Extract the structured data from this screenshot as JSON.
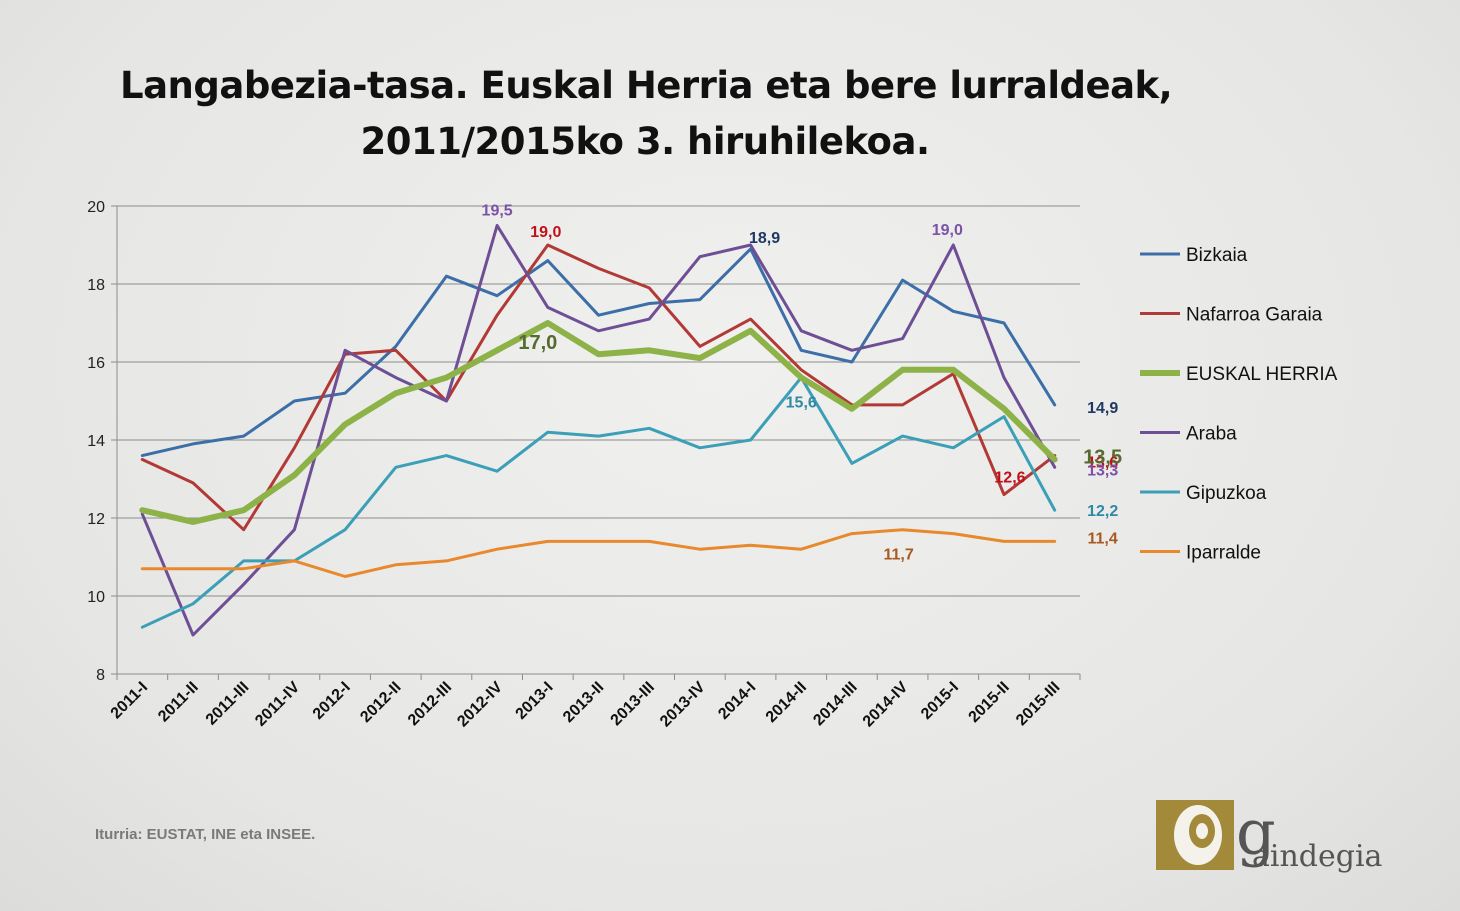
{
  "chart_data": {
    "type": "line",
    "title_lines": [
      "Langabezia-tasa. Euskal Herria eta bere lurraldeak,",
      "2011/2015ko 3. hiruhilekoa."
    ],
    "categories": [
      "2011-I",
      "2011-II",
      "2011-III",
      "2011-IV",
      "2012-I",
      "2012-II",
      "2012-III",
      "2012-IV",
      "2013-I",
      "2013-II",
      "2013-III",
      "2013-IV",
      "2014-I",
      "2014-II",
      "2014-III",
      "2014-IV",
      "2015-I",
      "2015-II",
      "2015-III"
    ],
    "ylim": [
      8,
      20
    ],
    "yticks": [
      "8",
      "10",
      "12",
      "14",
      "16",
      "18",
      "20"
    ],
    "grid": true,
    "legend_position": "right",
    "series": [
      {
        "name": "Bizkaia",
        "color": "#3c6ea8",
        "width": 3,
        "values": [
          13.6,
          13.9,
          14.1,
          15.0,
          15.2,
          16.4,
          18.2,
          17.7,
          18.6,
          17.2,
          17.5,
          17.6,
          18.9,
          16.3,
          16.0,
          18.1,
          17.3,
          17.0,
          14.9
        ]
      },
      {
        "name": "Nafarroa Garaia",
        "color": "#b23a36",
        "width": 3,
        "values": [
          13.5,
          12.9,
          11.7,
          13.8,
          16.2,
          16.3,
          15.0,
          17.2,
          19.0,
          18.4,
          17.9,
          16.4,
          17.1,
          15.8,
          14.9,
          14.9,
          15.7,
          12.6,
          13.6
        ]
      },
      {
        "name": "EUSKAL HERRIA",
        "color": "#8db248",
        "width": 6,
        "values": [
          12.2,
          11.9,
          12.2,
          13.1,
          14.4,
          15.2,
          15.6,
          16.3,
          17.0,
          16.2,
          16.3,
          16.1,
          16.8,
          15.6,
          14.8,
          15.8,
          15.8,
          14.8,
          13.5
        ]
      },
      {
        "name": "Araba",
        "color": "#6e4f95",
        "width": 3,
        "values": [
          12.1,
          9.0,
          10.3,
          11.7,
          16.3,
          15.6,
          15.0,
          19.5,
          17.4,
          16.8,
          17.1,
          18.7,
          19.0,
          16.8,
          16.3,
          16.6,
          19.0,
          15.6,
          13.3
        ]
      },
      {
        "name": "Gipuzkoa",
        "color": "#3a9fb7",
        "width": 3,
        "values": [
          9.2,
          9.8,
          10.9,
          10.9,
          11.7,
          13.3,
          13.6,
          13.2,
          14.2,
          14.1,
          14.3,
          13.8,
          14.0,
          15.6,
          13.4,
          14.1,
          13.8,
          14.6,
          12.2
        ]
      },
      {
        "name": "Iparralde",
        "color": "#e7892c",
        "width": 3,
        "values": [
          10.7,
          10.7,
          10.7,
          10.9,
          10.5,
          10.8,
          10.9,
          11.2,
          11.4,
          11.4,
          11.4,
          11.2,
          11.3,
          11.2,
          11.6,
          11.7,
          11.6,
          11.4,
          11.4
        ]
      }
    ],
    "annotations": [
      {
        "text": "19,5",
        "series": "Araba",
        "category": "2012-IV",
        "color": "#7b52a8"
      },
      {
        "text": "19,0",
        "series": "Nafarroa Garaia",
        "category": "2013-I",
        "color": "#c0111a"
      },
      {
        "text": "17,0",
        "series": "EUSKAL HERRIA",
        "category": "2013-I",
        "color": "#556b2f"
      },
      {
        "text": "18,9",
        "series": "Bizkaia",
        "category": "2014-I",
        "color": "#1f3864"
      },
      {
        "text": "15,6",
        "series": "Gipuzkoa",
        "category": "2014-II",
        "color": "#2e8aa3"
      },
      {
        "text": "11,7",
        "series": "Iparralde",
        "category": "2014-IV",
        "color": "#a9581f"
      },
      {
        "text": "19,0",
        "series": "Araba",
        "category": "2015-I",
        "color": "#7b52a8"
      },
      {
        "text": "12,6",
        "series": "Nafarroa Garaia",
        "category": "2015-II",
        "color": "#c0111a"
      },
      {
        "text": "14,9",
        "series": "Bizkaia",
        "category": "2015-III",
        "color": "#1f3864"
      },
      {
        "text": "13,6",
        "series": "Nafarroa Garaia",
        "category": "2015-III",
        "color": "#c0111a"
      },
      {
        "text": "13,5",
        "series": "EUSKAL HERRIA",
        "category": "2015-III",
        "color": "#556b2f"
      },
      {
        "text": "13,3",
        "series": "Araba",
        "category": "2015-III",
        "color": "#7b52a8"
      },
      {
        "text": "12,2",
        "series": "Gipuzkoa",
        "category": "2015-III",
        "color": "#2e8aa3"
      },
      {
        "text": "11,4",
        "series": "Iparralde",
        "category": "2015-III",
        "color": "#a9581f"
      }
    ]
  },
  "source_note": "Iturria: EUSTAT, INE eta INSEE.",
  "logo": {
    "text": "aindegia",
    "letter": "g",
    "color": "#a28a3a"
  }
}
